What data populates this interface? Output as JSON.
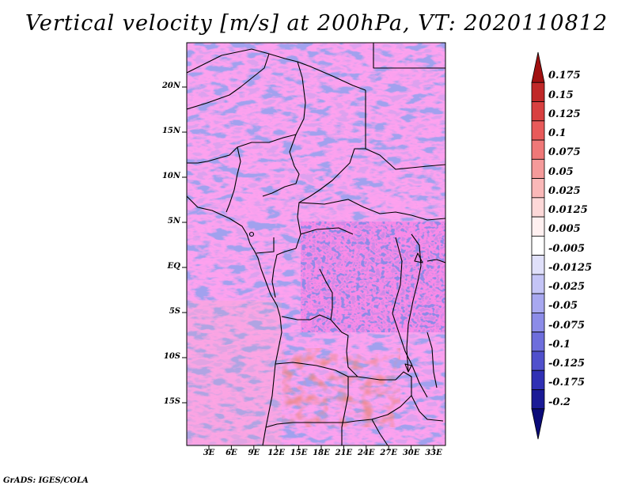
{
  "title": "Vertical velocity [m/s] at 200hPa, VT: 2020110812",
  "credit": "GrADS: IGES/COLA",
  "lat_labels": [
    "20N",
    "15N",
    "10N",
    "5N",
    "EQ",
    "5S",
    "10S",
    "15S"
  ],
  "lon_labels": [
    "3E",
    "6E",
    "9E",
    "12E",
    "15E",
    "18E",
    "21E",
    "24E",
    "27E",
    "30E",
    "33E"
  ],
  "colorbar": {
    "labels": [
      "0.175",
      "0.15",
      "0.125",
      "0.1",
      "0.075",
      "0.05",
      "0.025",
      "0.0125",
      "0.005",
      "-0.005",
      "-0.0125",
      "-0.025",
      "-0.05",
      "-0.075",
      "-0.1",
      "-0.125",
      "-0.175",
      "-0.2"
    ],
    "colors": [
      "#a01010",
      "#c02828",
      "#d84040",
      "#e85a5a",
      "#f07878",
      "#f59a9a",
      "#fab8b8",
      "#fdd8d8",
      "#fff0f0",
      "#ffffff",
      "#e0e0fa",
      "#c4c4f6",
      "#a8a8f0",
      "#8c8ce8",
      "#6e6edc",
      "#5050cc",
      "#3030b4",
      "#1a1a96",
      "#0a0a78"
    ]
  }
}
